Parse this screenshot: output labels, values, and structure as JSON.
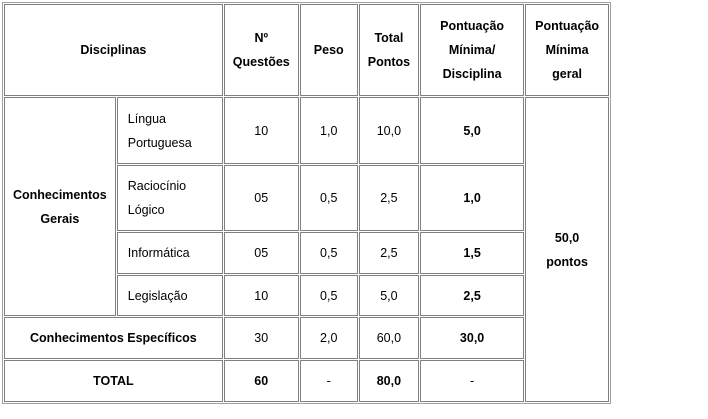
{
  "header": {
    "disciplinas": "Disciplinas",
    "questoes": [
      "Nº",
      "Questões"
    ],
    "peso": "Peso",
    "total_pontos": [
      "Total",
      "Pontos"
    ],
    "pontuacao_minima_disciplina": [
      "Pontuação",
      "Mínima/",
      "Disciplina"
    ],
    "pontuacao_minima_geral": [
      "Pontuação",
      "Mínima",
      "geral"
    ]
  },
  "group": {
    "label": [
      "Conhecimentos",
      "Gerais"
    ]
  },
  "rows": [
    {
      "disciplina": [
        "Língua",
        "Portuguesa"
      ],
      "questoes": "10",
      "peso": "1,0",
      "total": "10,0",
      "minima": "5,0"
    },
    {
      "disciplina": [
        "Raciocínio",
        "Lógico"
      ],
      "questoes": "05",
      "peso": "0,5",
      "total": "2,5",
      "minima": "1,0"
    },
    {
      "disciplina": [
        "Informática"
      ],
      "questoes": "05",
      "peso": "0,5",
      "total": "2,5",
      "minima": "1,5"
    },
    {
      "disciplina": [
        "Legislação"
      ],
      "questoes": "10",
      "peso": "0,5",
      "total": "5,0",
      "minima": "2,5"
    }
  ],
  "especificos": {
    "label": "Conhecimentos Específicos",
    "questoes": "30",
    "peso": "2,0",
    "total": "60,0",
    "minima": "30,0"
  },
  "total": {
    "label": "TOTAL",
    "questoes": "60",
    "peso": "-",
    "total": "80,0",
    "minima": "-"
  },
  "minima_geral": "50,0 pontos"
}
